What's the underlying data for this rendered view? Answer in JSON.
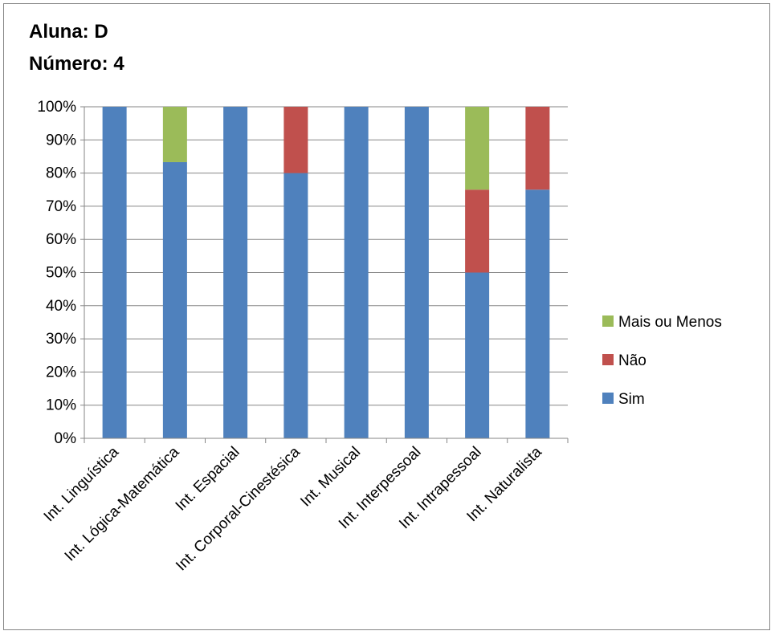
{
  "chart_data": {
    "type": "bar",
    "stacked": true,
    "title_lines": [
      "Aluna: D",
      "Número: 4"
    ],
    "categories": [
      "Int. Linguística",
      "Int. Lógica-Matemática",
      "Int. Espacial",
      "Int. Corporal-Cinestésica",
      "Int. Musical",
      "Int. Interpessoal",
      "Int. Intrapessoal",
      "Int. Naturalista"
    ],
    "series": [
      {
        "name": "Sim",
        "color": "#4f81bd",
        "values": [
          100,
          83.3,
          100,
          80,
          100,
          100,
          50,
          75
        ]
      },
      {
        "name": "Não",
        "color": "#c0504d",
        "values": [
          0,
          0,
          0,
          20,
          0,
          0,
          25,
          25
        ]
      },
      {
        "name": "Mais ou Menos",
        "color": "#9bbb59",
        "values": [
          0,
          16.7,
          0,
          0,
          0,
          0,
          25,
          0
        ]
      }
    ],
    "y_ticks": [
      "0%",
      "10%",
      "20%",
      "30%",
      "40%",
      "50%",
      "60%",
      "70%",
      "80%",
      "90%",
      "100%"
    ],
    "ylim": [
      0,
      100
    ],
    "grid": true,
    "legend_position": "right",
    "legend_order": [
      "Mais ou Menos",
      "Não",
      "Sim"
    ],
    "xlabel": "",
    "ylabel": ""
  }
}
